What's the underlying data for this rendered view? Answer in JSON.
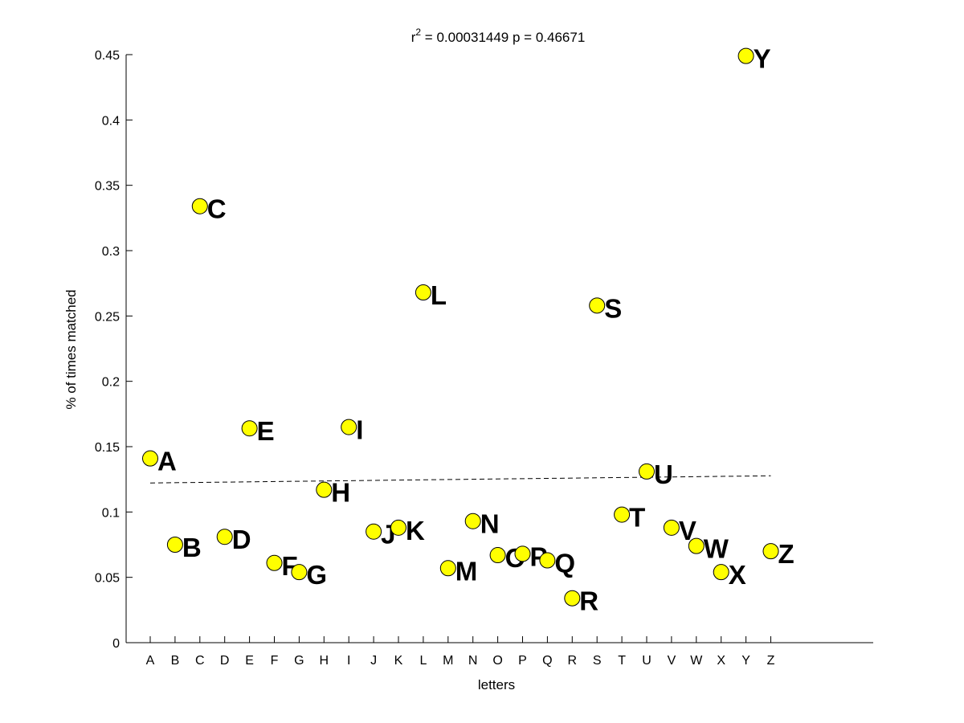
{
  "chart_data": {
    "type": "scatter",
    "title_prefix": "r",
    "title_superscript": "2",
    "title_suffix": " = 0.00031449 p = 0.46671",
    "xlabel": "letters",
    "ylabel": "% of times matched",
    "ylim": [
      0,
      0.45
    ],
    "y_ticks": [
      "0",
      "0.05",
      "0.1",
      "0.15",
      "0.2",
      "0.25",
      "0.3",
      "0.35",
      "0.4",
      "0.45"
    ],
    "categories": [
      "A",
      "B",
      "C",
      "D",
      "E",
      "F",
      "G",
      "H",
      "I",
      "J",
      "K",
      "L",
      "M",
      "N",
      "O",
      "P",
      "Q",
      "R",
      "S",
      "T",
      "U",
      "V",
      "W",
      "X",
      "Y",
      "Z"
    ],
    "values": [
      0.141,
      0.075,
      0.334,
      0.081,
      0.164,
      0.061,
      0.054,
      0.117,
      0.165,
      0.085,
      0.088,
      0.268,
      0.057,
      0.093,
      0.067,
      0.068,
      0.063,
      0.034,
      0.258,
      0.098,
      0.131,
      0.088,
      0.074,
      0.054,
      0.449,
      0.07
    ],
    "point_labels": [
      "A",
      "B",
      "C",
      "D",
      "E",
      "F",
      "G",
      "H",
      "I",
      "J",
      "K",
      "L",
      "M",
      "N",
      "O",
      "P",
      "Q",
      "R",
      "S",
      "T",
      "U",
      "V",
      "W",
      "X",
      "Y",
      "Z"
    ],
    "trend_line": {
      "start": 0.1222,
      "end": 0.1277
    },
    "marker_color": "#ffff00",
    "marker_edge_color": "#000000",
    "grid": false
  }
}
